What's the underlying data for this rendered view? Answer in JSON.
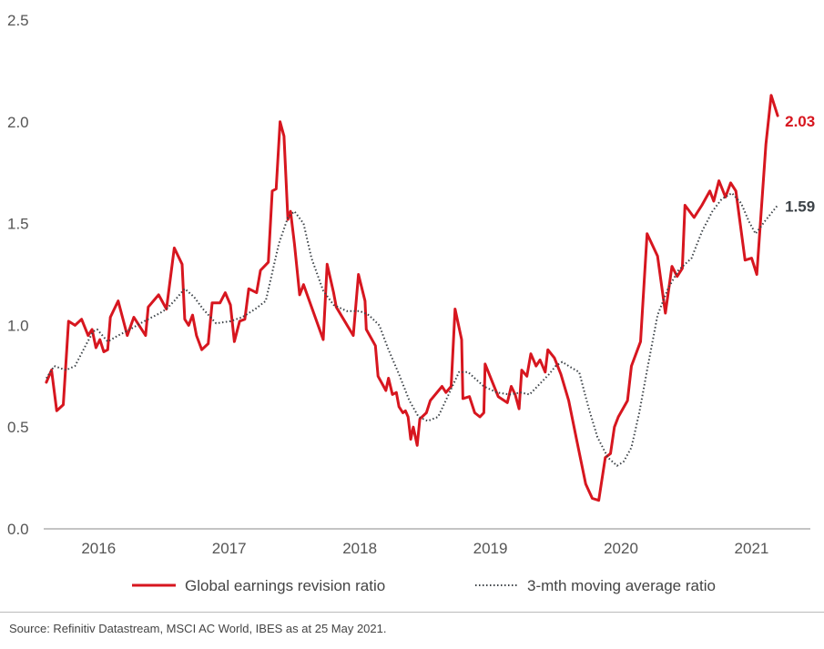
{
  "chart_data": {
    "type": "line",
    "ylim": [
      0,
      2.5
    ],
    "yticks": [
      "0.0",
      "0.5",
      "1.0",
      "1.5",
      "2.0",
      "2.5"
    ],
    "xlim": [
      2015.58,
      2021.45
    ],
    "xticks": [
      {
        "label": "2016",
        "x": 2016.0
      },
      {
        "label": "2017",
        "x": 2017.0
      },
      {
        "label": "2018",
        "x": 2018.0
      },
      {
        "label": "2019",
        "x": 2019.0
      },
      {
        "label": "2020",
        "x": 2020.0
      },
      {
        "label": "2021",
        "x": 2021.0
      }
    ],
    "grid": false,
    "legend": "bottom",
    "series": [
      {
        "name": "Global earnings revision ratio",
        "color": "#d7161f",
        "style": "solid",
        "end_label": "2.03",
        "points": [
          [
            2015.6,
            0.72
          ],
          [
            2015.64,
            0.78
          ],
          [
            2015.68,
            0.58
          ],
          [
            2015.73,
            0.61
          ],
          [
            2015.77,
            1.02
          ],
          [
            2015.82,
            1.0
          ],
          [
            2015.87,
            1.03
          ],
          [
            2015.92,
            0.95
          ],
          [
            2015.95,
            0.98
          ],
          [
            2015.98,
            0.89
          ],
          [
            2016.01,
            0.93
          ],
          [
            2016.04,
            0.87
          ],
          [
            2016.07,
            0.88
          ],
          [
            2016.09,
            1.04
          ],
          [
            2016.15,
            1.12
          ],
          [
            2016.22,
            0.95
          ],
          [
            2016.27,
            1.04
          ],
          [
            2016.36,
            0.95
          ],
          [
            2016.38,
            1.09
          ],
          [
            2016.46,
            1.15
          ],
          [
            2016.52,
            1.08
          ],
          [
            2016.58,
            1.38
          ],
          [
            2016.64,
            1.3
          ],
          [
            2016.66,
            1.03
          ],
          [
            2016.69,
            1.0
          ],
          [
            2016.72,
            1.05
          ],
          [
            2016.75,
            0.95
          ],
          [
            2016.79,
            0.88
          ],
          [
            2016.84,
            0.91
          ],
          [
            2016.87,
            1.11
          ],
          [
            2016.93,
            1.11
          ],
          [
            2016.97,
            1.16
          ],
          [
            2017.01,
            1.1
          ],
          [
            2017.04,
            0.92
          ],
          [
            2017.08,
            1.02
          ],
          [
            2017.12,
            1.03
          ],
          [
            2017.15,
            1.18
          ],
          [
            2017.21,
            1.16
          ],
          [
            2017.24,
            1.27
          ],
          [
            2017.3,
            1.31
          ],
          [
            2017.33,
            1.66
          ],
          [
            2017.36,
            1.67
          ],
          [
            2017.39,
            2.0
          ],
          [
            2017.42,
            1.93
          ],
          [
            2017.45,
            1.52
          ],
          [
            2017.47,
            1.56
          ],
          [
            2017.5,
            1.4
          ],
          [
            2017.54,
            1.15
          ],
          [
            2017.57,
            1.2
          ],
          [
            2017.72,
            0.93
          ],
          [
            2017.75,
            1.3
          ],
          [
            2017.8,
            1.16
          ],
          [
            2017.82,
            1.09
          ],
          [
            2017.95,
            0.95
          ],
          [
            2017.99,
            1.25
          ],
          [
            2018.04,
            1.12
          ],
          [
            2018.05,
            0.98
          ],
          [
            2018.12,
            0.9
          ],
          [
            2018.14,
            0.75
          ],
          [
            2018.2,
            0.68
          ],
          [
            2018.22,
            0.74
          ],
          [
            2018.25,
            0.66
          ],
          [
            2018.28,
            0.67
          ],
          [
            2018.3,
            0.6
          ],
          [
            2018.33,
            0.57
          ],
          [
            2018.35,
            0.58
          ],
          [
            2018.37,
            0.55
          ],
          [
            2018.39,
            0.44
          ],
          [
            2018.41,
            0.5
          ],
          [
            2018.44,
            0.41
          ],
          [
            2018.46,
            0.54
          ],
          [
            2018.51,
            0.57
          ],
          [
            2018.54,
            0.63
          ],
          [
            2018.63,
            0.7
          ],
          [
            2018.66,
            0.67
          ],
          [
            2018.7,
            0.7
          ],
          [
            2018.73,
            1.08
          ],
          [
            2018.78,
            0.93
          ],
          [
            2018.79,
            0.64
          ],
          [
            2018.84,
            0.65
          ],
          [
            2018.88,
            0.57
          ],
          [
            2018.92,
            0.55
          ],
          [
            2018.95,
            0.57
          ],
          [
            2018.96,
            0.81
          ],
          [
            2019.06,
            0.65
          ],
          [
            2019.13,
            0.62
          ],
          [
            2019.16,
            0.7
          ],
          [
            2019.19,
            0.66
          ],
          [
            2019.22,
            0.59
          ],
          [
            2019.24,
            0.78
          ],
          [
            2019.28,
            0.75
          ],
          [
            2019.31,
            0.86
          ],
          [
            2019.35,
            0.8
          ],
          [
            2019.38,
            0.83
          ],
          [
            2019.42,
            0.77
          ],
          [
            2019.44,
            0.88
          ],
          [
            2019.49,
            0.84
          ],
          [
            2019.54,
            0.76
          ],
          [
            2019.6,
            0.63
          ],
          [
            2019.66,
            0.44
          ],
          [
            2019.73,
            0.22
          ],
          [
            2019.78,
            0.15
          ],
          [
            2019.83,
            0.14
          ],
          [
            2019.88,
            0.35
          ],
          [
            2019.92,
            0.37
          ],
          [
            2019.95,
            0.5
          ],
          [
            2019.98,
            0.55
          ],
          [
            2020.05,
            0.63
          ],
          [
            2020.08,
            0.8
          ],
          [
            2020.15,
            0.92
          ],
          [
            2020.2,
            1.45
          ],
          [
            2020.28,
            1.34
          ],
          [
            2020.34,
            1.06
          ],
          [
            2020.39,
            1.29
          ],
          [
            2020.43,
            1.24
          ],
          [
            2020.47,
            1.28
          ],
          [
            2020.49,
            1.59
          ],
          [
            2020.56,
            1.53
          ],
          [
            2020.62,
            1.59
          ],
          [
            2020.68,
            1.66
          ],
          [
            2020.71,
            1.61
          ],
          [
            2020.75,
            1.71
          ],
          [
            2020.8,
            1.63
          ],
          [
            2020.84,
            1.7
          ],
          [
            2020.88,
            1.66
          ],
          [
            2020.95,
            1.32
          ],
          [
            2021.0,
            1.33
          ],
          [
            2021.04,
            1.25
          ],
          [
            2021.11,
            1.89
          ],
          [
            2021.15,
            2.13
          ],
          [
            2021.2,
            2.03
          ]
        ]
      },
      {
        "name": "3-mth moving average ratio",
        "color": "#3c4247",
        "style": "dotted",
        "end_label": "1.59",
        "points": [
          [
            2015.6,
            0.74
          ],
          [
            2015.66,
            0.8
          ],
          [
            2015.75,
            0.78
          ],
          [
            2015.82,
            0.8
          ],
          [
            2015.9,
            0.9
          ],
          [
            2015.96,
            0.97
          ],
          [
            2015.99,
            0.98
          ],
          [
            2016.07,
            0.92
          ],
          [
            2016.15,
            0.95
          ],
          [
            2016.24,
            0.98
          ],
          [
            2016.35,
            1.02
          ],
          [
            2016.47,
            1.06
          ],
          [
            2016.52,
            1.08
          ],
          [
            2016.58,
            1.12
          ],
          [
            2016.66,
            1.18
          ],
          [
            2016.73,
            1.14
          ],
          [
            2016.8,
            1.08
          ],
          [
            2016.9,
            1.01
          ],
          [
            2017.01,
            1.02
          ],
          [
            2017.1,
            1.04
          ],
          [
            2017.2,
            1.08
          ],
          [
            2017.28,
            1.12
          ],
          [
            2017.38,
            1.4
          ],
          [
            2017.45,
            1.53
          ],
          [
            2017.5,
            1.56
          ],
          [
            2017.57,
            1.5
          ],
          [
            2017.63,
            1.33
          ],
          [
            2017.72,
            1.17
          ],
          [
            2017.8,
            1.1
          ],
          [
            2017.9,
            1.07
          ],
          [
            2018.0,
            1.07
          ],
          [
            2018.07,
            1.05
          ],
          [
            2018.15,
            1.0
          ],
          [
            2018.22,
            0.88
          ],
          [
            2018.3,
            0.76
          ],
          [
            2018.38,
            0.63
          ],
          [
            2018.45,
            0.55
          ],
          [
            2018.52,
            0.53
          ],
          [
            2018.6,
            0.55
          ],
          [
            2018.68,
            0.66
          ],
          [
            2018.76,
            0.77
          ],
          [
            2018.83,
            0.77
          ],
          [
            2018.88,
            0.74
          ],
          [
            2018.95,
            0.7
          ],
          [
            2019.05,
            0.67
          ],
          [
            2019.15,
            0.66
          ],
          [
            2019.23,
            0.67
          ],
          [
            2019.3,
            0.66
          ],
          [
            2019.36,
            0.7
          ],
          [
            2019.45,
            0.76
          ],
          [
            2019.5,
            0.8
          ],
          [
            2019.55,
            0.82
          ],
          [
            2019.6,
            0.8
          ],
          [
            2019.68,
            0.77
          ],
          [
            2019.75,
            0.6
          ],
          [
            2019.82,
            0.45
          ],
          [
            2019.9,
            0.35
          ],
          [
            2019.97,
            0.31
          ],
          [
            2020.02,
            0.33
          ],
          [
            2020.08,
            0.4
          ],
          [
            2020.14,
            0.57
          ],
          [
            2020.2,
            0.78
          ],
          [
            2020.28,
            1.05
          ],
          [
            2020.36,
            1.18
          ],
          [
            2020.44,
            1.27
          ],
          [
            2020.54,
            1.33
          ],
          [
            2020.62,
            1.46
          ],
          [
            2020.7,
            1.56
          ],
          [
            2020.77,
            1.62
          ],
          [
            2020.85,
            1.65
          ],
          [
            2020.92,
            1.6
          ],
          [
            2020.98,
            1.51
          ],
          [
            2021.03,
            1.45
          ],
          [
            2021.1,
            1.51
          ],
          [
            2021.2,
            1.59
          ]
        ]
      }
    ]
  },
  "source": "Source: Refinitiv Datastream, MSCI AC World, IBES as at 25 May 2021."
}
